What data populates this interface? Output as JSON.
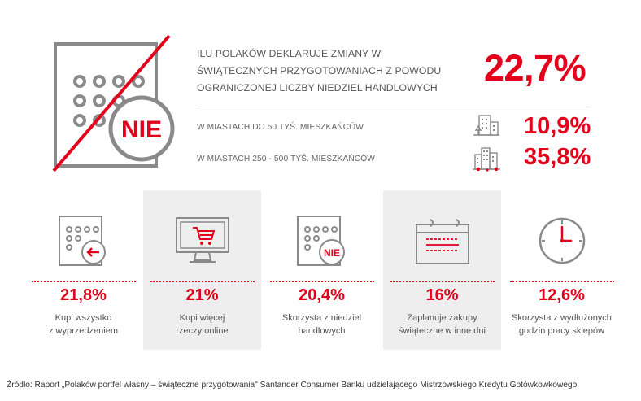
{
  "hero": {
    "badge": "NIE",
    "headline_lines": [
      "ILU POLAKÓW DEKLARUJE ZMIANY W",
      "ŚWIĄTECZNYCH PRZYGOTOWANIACH Z POWODU",
      "OGRANICZONEJ LICZBY NIEDZIEL HANDLOWYCH"
    ],
    "value": "22,7%"
  },
  "breakdown": [
    {
      "label": "W MIASTACH DO 50 TYŚ. MIESZKAŃCÓW",
      "value": "10,9%",
      "icon": "small-town-icon"
    },
    {
      "label": "W MIASTACH 250 - 500 TYŚ. MIESZKAŃCÓW",
      "value": "35,8%",
      "icon": "city-icon"
    }
  ],
  "stats": [
    {
      "value": "21,8%",
      "line1": "Kupi wszystko",
      "line2": "z wyprzedzeniem",
      "icon": "calendar-arrow-icon"
    },
    {
      "value": "21%",
      "line1": "Kupi więcej",
      "line2": "rzeczy online",
      "icon": "monitor-cart-icon"
    },
    {
      "value": "20,4%",
      "line1": "Skorzysta z niedziel",
      "line2": "handlowych",
      "icon": "calendar-nie-icon",
      "badge": "NIE"
    },
    {
      "value": "16%",
      "line1": "Zaplanuje zakupy",
      "line2": "świąteczne w inne dni",
      "icon": "calendar-plan-icon"
    },
    {
      "value": "12,6%",
      "line1": "Skorzysta z wydłużonych",
      "line2": "godzin pracy sklepów",
      "icon": "clock-icon"
    }
  ],
  "source": "Źródło: Raport „Polaków portfel własny – świąteczne przygotowania\" Santander Consumer Banku udzielającego Mistrzowskiego Kredytu Gotówkowkowego",
  "colors": {
    "accent": "#e3001b",
    "icon_gray": "#8a8a8a",
    "panel": "#eeeeee"
  }
}
